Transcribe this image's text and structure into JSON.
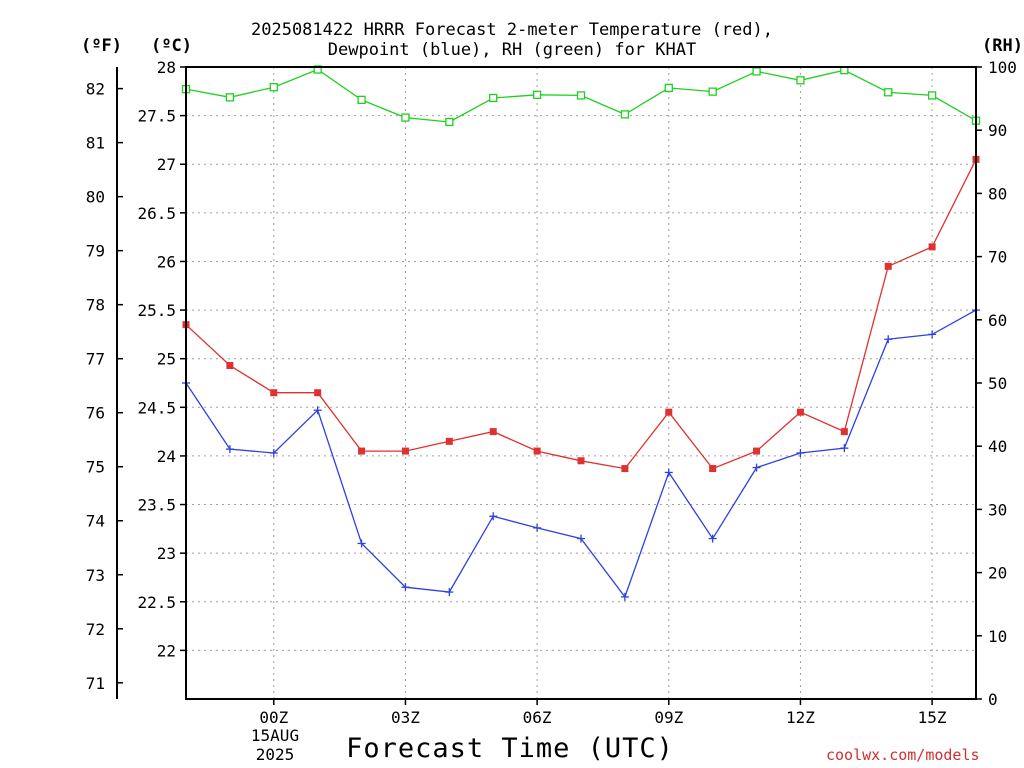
{
  "title": {
    "line1": "2025081422 HRRR Forecast 2-meter Temperature (red),",
    "line2": "Dewpoint (blue), RH (green) for KHAT"
  },
  "units": {
    "fahrenheit": "(ºF)",
    "celsius": "(ºC)",
    "rh": "(RH)"
  },
  "xlabel": "Forecast Time (UTC)",
  "date_label": {
    "line1": "15AUG",
    "line2": "2025"
  },
  "credit": "coolwx.com/models",
  "colors": {
    "temperature": "#e03030",
    "dewpoint": "#3040e0",
    "rh": "#20d020",
    "grid": "#a0a0a0"
  },
  "chart_data": {
    "type": "line",
    "x": [
      "22Z",
      "23Z",
      "00Z",
      "01Z",
      "02Z",
      "03Z",
      "04Z",
      "05Z",
      "06Z",
      "07Z",
      "08Z",
      "09Z",
      "10Z",
      "11Z",
      "12Z",
      "13Z",
      "14Z",
      "15Z",
      "16Z"
    ],
    "x_tick_labels": [
      "00Z",
      "03Z",
      "06Z",
      "09Z",
      "12Z",
      "15Z"
    ],
    "left_axis_celsius": {
      "ylim": [
        21.5,
        28.0
      ],
      "ticks": [
        22,
        22.5,
        23,
        23.5,
        24,
        24.5,
        25,
        25.5,
        26,
        26.5,
        27,
        27.5,
        28
      ]
    },
    "left_axis_fahrenheit": {
      "ticks": [
        71,
        72,
        73,
        74,
        75,
        76,
        77,
        78,
        79,
        80,
        81,
        82
      ]
    },
    "right_axis_rh": {
      "ylim": [
        0,
        100
      ],
      "ticks": [
        0,
        10,
        20,
        30,
        40,
        50,
        60,
        70,
        80,
        90,
        100
      ]
    },
    "grid": true,
    "series": [
      {
        "key": "temperature",
        "axis": "celsius",
        "marker": "filled-square",
        "values": [
          25.35,
          24.93,
          24.65,
          24.65,
          24.05,
          24.05,
          24.15,
          24.25,
          24.05,
          23.95,
          23.87,
          24.45,
          23.87,
          24.05,
          24.45,
          24.25,
          25.95,
          26.15,
          27.05
        ]
      },
      {
        "key": "dewpoint",
        "axis": "celsius",
        "marker": "plus",
        "values": [
          24.75,
          24.07,
          24.03,
          24.47,
          23.1,
          22.65,
          22.6,
          23.38,
          23.26,
          23.15,
          22.55,
          23.83,
          23.15,
          23.88,
          24.03,
          24.08,
          25.2,
          25.25,
          25.5
        ]
      },
      {
        "key": "rh",
        "axis": "rh",
        "marker": "open-square",
        "values": [
          96.5,
          95.2,
          96.8,
          99.6,
          94.8,
          92.0,
          91.3,
          95.1,
          95.6,
          95.5,
          92.5,
          96.7,
          96.1,
          99.3,
          97.9,
          99.5,
          96.0,
          95.5,
          91.5
        ]
      }
    ]
  }
}
